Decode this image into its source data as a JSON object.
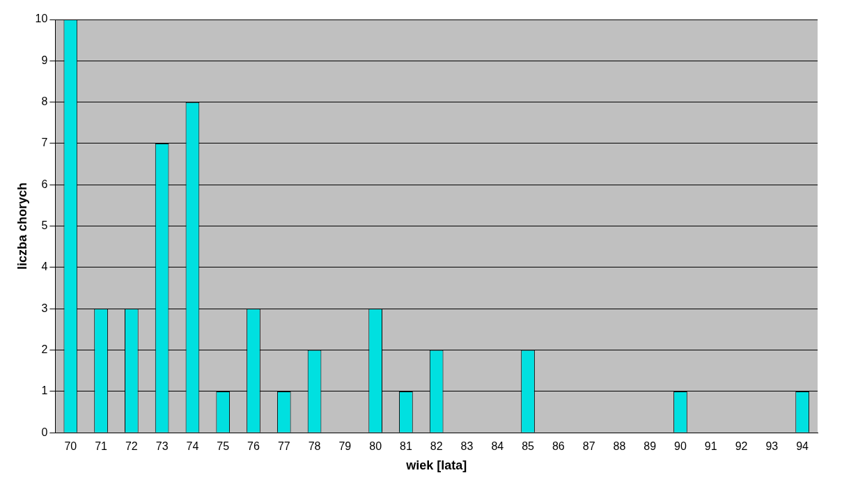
{
  "chart_data": {
    "type": "bar",
    "xlabel": "wiek [lata]",
    "ylabel": "liczba chorych",
    "categories": [
      "70",
      "71",
      "72",
      "73",
      "74",
      "75",
      "76",
      "77",
      "78",
      "79",
      "80",
      "81",
      "82",
      "83",
      "84",
      "85",
      "86",
      "87",
      "88",
      "89",
      "90",
      "91",
      "92",
      "93",
      "94"
    ],
    "values": [
      10,
      3,
      3,
      7,
      8,
      1,
      3,
      1,
      2,
      0,
      3,
      1,
      2,
      0,
      0,
      2,
      0,
      0,
      0,
      0,
      1,
      0,
      0,
      0,
      1
    ],
    "color": "#00e0e0",
    "ylim": [
      0,
      10
    ],
    "yticks": [
      0,
      1,
      2,
      3,
      4,
      5,
      6,
      7,
      8,
      9,
      10
    ],
    "grid": "y",
    "legend": false
  }
}
